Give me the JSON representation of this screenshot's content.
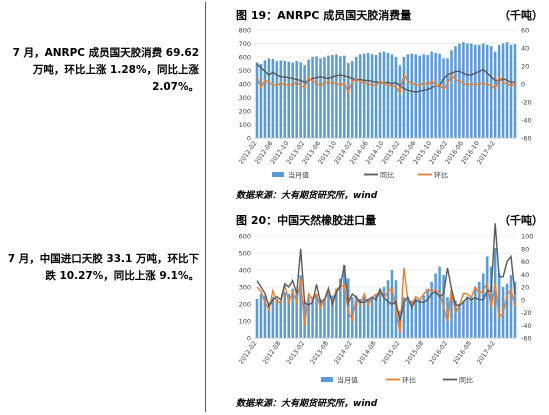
{
  "text_blocks": [
    "7 月，ANRPC 成员国天胶消费 69.62 万吨，环比上涨 1.28%，同比上涨 2.07%。",
    "7 月，中国进口天胶 33.1 万吨，环比下跌 10.27%，同比上涨 9.1%。"
  ],
  "chart_data": [
    {
      "type": "bar",
      "title": "图 19：ANRPC 成员国天胶消费量",
      "unit": "（千吨）",
      "source": "数据来源：大有期货研究所，wind",
      "x": [
        "2012-02",
        "2012-03",
        "2012-04",
        "2012-05",
        "2012-06",
        "2012-07",
        "2012-08",
        "2012-09",
        "2012-10",
        "2012-11",
        "2012-12",
        "2013-01",
        "2013-02",
        "2013-03",
        "2013-04",
        "2013-05",
        "2013-06",
        "2013-07",
        "2013-08",
        "2013-09",
        "2013-10",
        "2013-11",
        "2013-12",
        "2014-01",
        "2014-02",
        "2014-03",
        "2014-04",
        "2014-05",
        "2014-06",
        "2014-07",
        "2014-08",
        "2014-09",
        "2014-10",
        "2014-11",
        "2014-12",
        "2015-01",
        "2015-02",
        "2015-03",
        "2015-04",
        "2015-05",
        "2015-06",
        "2015-07",
        "2015-08",
        "2015-09",
        "2015-10",
        "2015-11",
        "2015-12",
        "2016-01",
        "2016-02",
        "2016-03",
        "2016-04",
        "2016-05",
        "2016-06",
        "2016-07",
        "2016-08",
        "2016-09",
        "2016-10",
        "2016-11",
        "2016-12",
        "2017-01",
        "2017-02",
        "2017-03",
        "2017-04",
        "2017-05",
        "2017-06",
        "2017-07"
      ],
      "x_ticks": [
        "2012-02",
        "2012-06",
        "2012-10",
        "2013-02",
        "2013-06",
        "2013-10",
        "2014-02",
        "2014-06",
        "2014-10",
        "2015-02",
        "2015-06",
        "2015-10",
        "2016-02",
        "2016-06",
        "2016-10",
        "2017-02"
      ],
      "ylim_left": [
        0,
        800
      ],
      "yticks_left": [
        0,
        100,
        200,
        300,
        400,
        500,
        600,
        700,
        800
      ],
      "ylim_right": [
        -60,
        60
      ],
      "yticks_right": [
        -60,
        -40,
        -20,
        0,
        20,
        40,
        60
      ],
      "legend": [
        "当月值",
        "同比",
        "环比"
      ],
      "series": [
        {
          "name": "当月值",
          "axis": "left",
          "kind": "bar",
          "color": "#5b9bd5",
          "values": [
            560,
            550,
            575,
            590,
            585,
            570,
            575,
            570,
            565,
            560,
            570,
            560,
            540,
            580,
            600,
            605,
            590,
            600,
            610,
            615,
            620,
            605,
            610,
            555,
            570,
            600,
            620,
            625,
            630,
            620,
            615,
            635,
            640,
            630,
            620,
            600,
            540,
            600,
            620,
            625,
            620,
            610,
            620,
            615,
            640,
            630,
            625,
            590,
            590,
            650,
            680,
            700,
            710,
            700,
            700,
            690,
            690,
            700,
            690,
            680,
            640,
            690,
            700,
            710,
            690,
            696
          ]
        },
        {
          "name": "同比",
          "axis": "right",
          "kind": "line",
          "color": "#595959",
          "values": [
            22,
            18,
            14,
            10,
            13,
            10,
            8,
            8,
            7,
            6,
            5,
            4,
            2,
            4,
            6,
            7,
            8,
            7,
            6,
            8,
            9,
            10,
            9,
            8,
            6,
            5,
            5,
            4,
            4,
            3,
            2,
            2,
            1,
            2,
            0,
            2,
            -2,
            -5,
            -7,
            -8,
            -9,
            -8,
            -7,
            -6,
            -4,
            -2,
            -2,
            6,
            10,
            12,
            14,
            14,
            12,
            10,
            10,
            12,
            14,
            16,
            12,
            8,
            4,
            4,
            6,
            4,
            2,
            2
          ]
        },
        {
          "name": "环比",
          "axis": "right",
          "kind": "line",
          "color": "#ed7d31",
          "values": [
            8,
            -4,
            4,
            2,
            -1,
            -2,
            1,
            -1,
            -1,
            -1,
            2,
            -2,
            -4,
            7,
            3,
            1,
            -2,
            2,
            2,
            1,
            1,
            -2,
            1,
            -9,
            3,
            5,
            3,
            1,
            1,
            -2,
            -1,
            3,
            1,
            -2,
            -2,
            -3,
            -10,
            11,
            3,
            1,
            -1,
            -2,
            2,
            -1,
            4,
            -2,
            -1,
            -6,
            0,
            10,
            5,
            3,
            1,
            -1,
            0,
            -1,
            0,
            1,
            -1,
            -1,
            -6,
            8,
            1,
            1,
            -3,
            1
          ]
        }
      ]
    },
    {
      "type": "bar",
      "title": "图 20：中国天然橡胶进口量",
      "unit": "（千吨）",
      "source": "数据来源：大有期货研究所，wind",
      "x": [
        "2012-02",
        "2012-03",
        "2012-04",
        "2012-05",
        "2012-06",
        "2012-07",
        "2012-08",
        "2012-09",
        "2012-10",
        "2012-11",
        "2012-12",
        "2013-01",
        "2013-02",
        "2013-03",
        "2013-04",
        "2013-05",
        "2013-06",
        "2013-07",
        "2013-08",
        "2013-09",
        "2013-10",
        "2013-11",
        "2013-12",
        "2014-01",
        "2014-02",
        "2014-03",
        "2014-04",
        "2014-05",
        "2014-06",
        "2014-07",
        "2014-08",
        "2014-09",
        "2014-10",
        "2014-11",
        "2014-12",
        "2015-01",
        "2015-02",
        "2015-03",
        "2015-04",
        "2015-05",
        "2015-06",
        "2015-07",
        "2015-08",
        "2015-09",
        "2015-10",
        "2015-11",
        "2015-12",
        "2016-01",
        "2016-02",
        "2016-03",
        "2016-04",
        "2016-05",
        "2016-06",
        "2016-07",
        "2016-08",
        "2016-09",
        "2016-10",
        "2016-11",
        "2016-12",
        "2017-01",
        "2017-02",
        "2017-03",
        "2017-04",
        "2017-05",
        "2017-06",
        "2017-07"
      ],
      "x_ticks": [
        "2012-02",
        "2012-08",
        "2013-02",
        "2013-08",
        "2014-02",
        "2014-08",
        "2015-02",
        "2015-08",
        "2016-02",
        "2016-08",
        "2017-02"
      ],
      "ylim_left": [
        0,
        600
      ],
      "yticks_left": [
        0,
        100,
        200,
        300,
        400,
        500,
        600
      ],
      "ylim_right": [
        -60,
        100
      ],
      "yticks_right": [
        -60,
        -40,
        -20,
        0,
        20,
        40,
        60,
        80,
        100
      ],
      "legend": [
        "当月值",
        "环比",
        "同比"
      ],
      "series": [
        {
          "name": "当月值",
          "axis": "left",
          "kind": "bar",
          "color": "#5b9bd5",
          "values": [
            230,
            260,
            250,
            210,
            240,
            230,
            220,
            270,
            260,
            290,
            280,
            370,
            220,
            240,
            240,
            260,
            230,
            230,
            260,
            250,
            290,
            350,
            430,
            350,
            240,
            250,
            230,
            250,
            230,
            240,
            260,
            290,
            300,
            340,
            400,
            340,
            160,
            240,
            240,
            220,
            230,
            230,
            250,
            290,
            330,
            380,
            420,
            370,
            240,
            280,
            220,
            200,
            220,
            240,
            250,
            300,
            330,
            380,
            480,
            420,
            530,
            380,
            300,
            320,
            370,
            331
          ]
        },
        {
          "name": "环比",
          "axis": "right",
          "kind": "line",
          "color": "#ed7d31",
          "values": [
            20,
            13,
            -4,
            -16,
            14,
            -4,
            -4,
            23,
            -4,
            12,
            -3,
            32,
            -40,
            9,
            0,
            8,
            -12,
            0,
            13,
            -4,
            16,
            21,
            23,
            -19,
            -31,
            4,
            -8,
            9,
            -8,
            4,
            8,
            12,
            3,
            13,
            18,
            -15,
            -53,
            50,
            0,
            -8,
            5,
            0,
            9,
            16,
            14,
            15,
            11,
            -12,
            -35,
            17,
            -21,
            -9,
            10,
            9,
            4,
            20,
            10,
            15,
            26,
            -13,
            26,
            -28,
            -21,
            7,
            16,
            -10
          ]
        },
        {
          "name": "同比",
          "axis": "right",
          "kind": "line",
          "color": "#595959",
          "values": [
            30,
            20,
            10,
            -10,
            0,
            5,
            0,
            25,
            20,
            30,
            10,
            80,
            -5,
            -8,
            -4,
            24,
            -4,
            0,
            18,
            -7,
            12,
            21,
            54,
            -5,
            9,
            4,
            -4,
            -4,
            0,
            4,
            0,
            16,
            3,
            -3,
            -7,
            -3,
            -33,
            -4,
            4,
            -12,
            0,
            -4,
            -4,
            0,
            10,
            12,
            5,
            9,
            50,
            17,
            -8,
            -9,
            -4,
            4,
            0,
            3,
            0,
            0,
            14,
            14,
            120,
            36,
            36,
            60,
            68,
            9
          ]
        }
      ]
    }
  ]
}
